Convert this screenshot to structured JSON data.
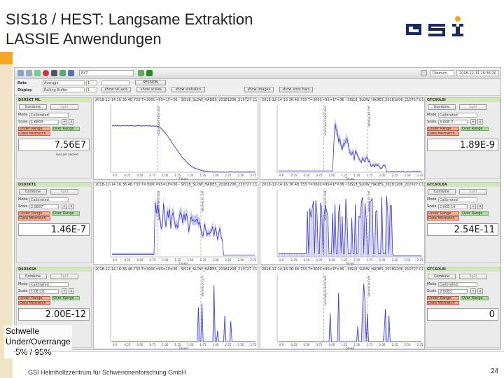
{
  "slide": {
    "title_line1": "SIS18 / HEST: Langsame Extraktion",
    "title_line2": "LASSIE Anwendungen",
    "footer": "GSI Helmholtzzentrum für Schwerionenforschung GmbH",
    "page_number": "24",
    "note_line1": "Schwelle",
    "note_line2": "Under/Overrange",
    "note_line3": "5% / 95%",
    "accent_color": "#f5a623",
    "logo_color": "#1a2b5c"
  },
  "app": {
    "toolbar": {
      "dropdown_value": "EXT",
      "date_value": "2018-12-14 16:36:10",
      "user_label": "Deutsch"
    },
    "controls": {
      "rate_label": "Rate",
      "rate_mode": "Average",
      "rate_value": "1",
      "display_label": "Display",
      "display_mode": "Rolling Buffer",
      "display_value": "1",
      "session_button": "SESSION",
      "button_1": "show rel.axis",
      "button_2": "show scales",
      "button_3": "show statistics",
      "button_4": "show images",
      "button_5": "show error bars"
    },
    "panels_left": [
      {
        "name": "DS03KT ML",
        "combine": "Combine",
        "split": "Split",
        "mode_label": "Mode",
        "mode": "Calibrated",
        "scale_label": "Scale",
        "scale": "1.6E03",
        "under": "Under Range",
        "over": "Over Range",
        "no_data": "Data Mismatch",
        "value": "7.56E7",
        "unit": "ions per second"
      },
      {
        "name": "DS03KT1",
        "combine": "Combine",
        "split": "Split",
        "mode_label": "Mode",
        "mode": "Calibrated",
        "scale_label": "Scale",
        "scale": "2.0E07",
        "under": "Under Range",
        "over": "Over Range",
        "no_data": "Data Mismatch",
        "value": "1.46E-7",
        "unit": ""
      },
      {
        "name": "DS03KSA",
        "combine": "Combine",
        "split": "Split",
        "mode_label": "Mode",
        "mode": "Calibrated",
        "scale_label": "Scale",
        "scale": "1.0E-10",
        "under": "Under Range",
        "over": "Over Range",
        "no_data": "Data Mismatch",
        "value": "2.00E-12",
        "unit": ""
      }
    ],
    "panels_right": [
      {
        "name": "GTC60LBI",
        "combine": "Combine",
        "split": "Split",
        "mode_label": "Mode",
        "mode": "Calibrated",
        "scale_label": "Scale",
        "scale": "3.00E-7",
        "under": "Under Range",
        "over": "Over Range",
        "no_data": "Data Mismatch",
        "value": "1.89E-9"
      },
      {
        "name": "GTC60LBA",
        "combine": "Combine",
        "split": "Split",
        "mode_label": "Mode",
        "mode": "Calibrated",
        "scale_label": "Scale",
        "scale": "2.00E-10",
        "under": "Under Range",
        "over": "Over Range",
        "no_data": "Data Mismatch",
        "value": "2.54E-11"
      },
      {
        "name": "GTC60LBI",
        "combine": "Combine",
        "split": "Split",
        "mode_label": "Mode",
        "mode": "Calibrated",
        "scale_label": "Scale",
        "scale": "2.00E0",
        "under": "Under Range",
        "over": "Over Range",
        "no_data": "Data Mismatch",
        "value": "0"
      }
    ],
    "plots": [
      {
        "title": "2018-12-14 16:36:48.733  T=300C=9S=1F=36 - SIS18_SLOW_HADES_20181206_210727.C1",
        "type": "decay",
        "markers": [
          "END SCAN EXTRACTION"
        ]
      },
      {
        "title": "2018-12-14 16:36:48.733  T=300C=9S=1F=36 - SIS18_SLOW_HADES_20181206_210727.C1",
        "type": "spike",
        "markers": [
          "END SCAN EXTRACTION",
          "ACT DE TRIGGER"
        ]
      },
      {
        "title": "2018-12-14 16:36:48.733  T=300C=9S=1F=36 - SIS18_SLOW_HADES_20181206_210727.C1",
        "type": "burst",
        "markers": [
          "END SCAN EXTRACTION",
          "ACT DE TRIGGER"
        ]
      },
      {
        "title": "2018-12-14 16:36:48.733  T=300C=9S=1F=36 - SIS18_SLOW_HADES_20181206_210727.C1",
        "type": "bars",
        "markers": [
          "END SCAN EXTRACTION",
          "ACT DE TRIGGER"
        ]
      },
      {
        "title": "2018-12-14 16:36:48.733  T=300C=9S=1F=36 - SIS18_SLOW_HADES_20181206_210727.C1",
        "type": "sparse",
        "markers": [
          "ACT DE TRIGGER"
        ]
      },
      {
        "title": "2018-12-14 16:36:48.733  T=300C=9S=1F=36 - SIS18_SLOW_HADES_20181206_210727.C1",
        "type": "sparse2",
        "markers": [
          "END SCAN EXTRACTION",
          "ACT DE TRIGGER"
        ]
      }
    ],
    "x_ticks": [
      "0.0",
      "0.25",
      "0.50",
      "0.75",
      "1.00",
      "1.25",
      "1.50",
      "1.75",
      "2.00",
      "2.25",
      "2.50",
      "2.75"
    ],
    "x_label": "Time/s",
    "trace_color": "#3a3ad0",
    "band_color": "#b8b8f0"
  }
}
